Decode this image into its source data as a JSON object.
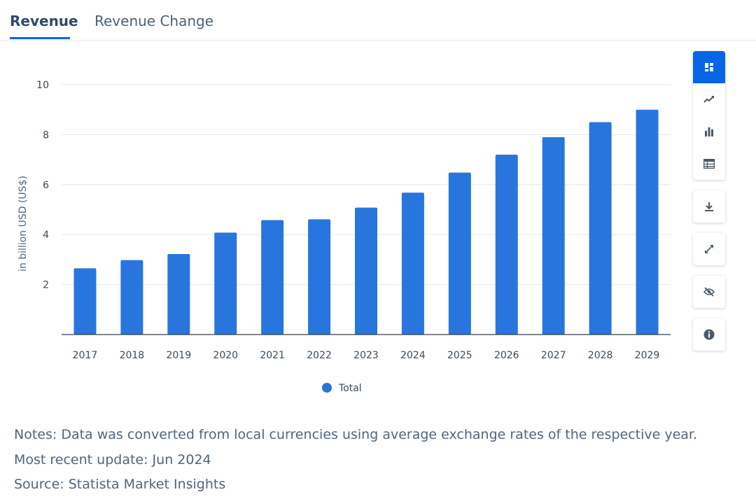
{
  "tabs": [
    {
      "label": "Revenue",
      "active": true
    },
    {
      "label": "Revenue Change",
      "active": false
    }
  ],
  "chart_data": {
    "type": "bar",
    "categories": [
      "2017",
      "2018",
      "2019",
      "2020",
      "2021",
      "2022",
      "2023",
      "2024",
      "2025",
      "2026",
      "2027",
      "2028",
      "2029"
    ],
    "series": [
      {
        "name": "Total",
        "values": [
          2.65,
          2.98,
          3.22,
          4.08,
          4.58,
          4.61,
          5.08,
          5.68,
          6.48,
          7.2,
          7.9,
          8.5,
          9.0
        ],
        "color": "#2876dd"
      }
    ],
    "ylabel": "in billion USD (US$)",
    "xlabel": "",
    "ylim": [
      0,
      10
    ],
    "yticks": [
      2,
      4,
      6,
      8,
      10
    ],
    "grid": true,
    "legend_position": "bottom"
  },
  "toolbar": {
    "view_buttons": [
      {
        "icon": "dashboard-icon",
        "active": true
      },
      {
        "icon": "line-chart-icon",
        "active": false
      },
      {
        "icon": "bar-chart-icon",
        "active": false
      },
      {
        "icon": "table-icon",
        "active": false
      }
    ],
    "action_buttons": [
      "download-icon",
      "expand-icon",
      "hide-icon",
      "info-icon"
    ]
  },
  "notes": {
    "note": "Notes: Data was converted from local currencies using average exchange rates of the respective year.",
    "update": "Most recent update: Jun 2024",
    "source": "Source: Statista Market Insights"
  },
  "colors": {
    "accent": "#0666e5",
    "bar": "#2876dd",
    "text": "#50667d"
  }
}
